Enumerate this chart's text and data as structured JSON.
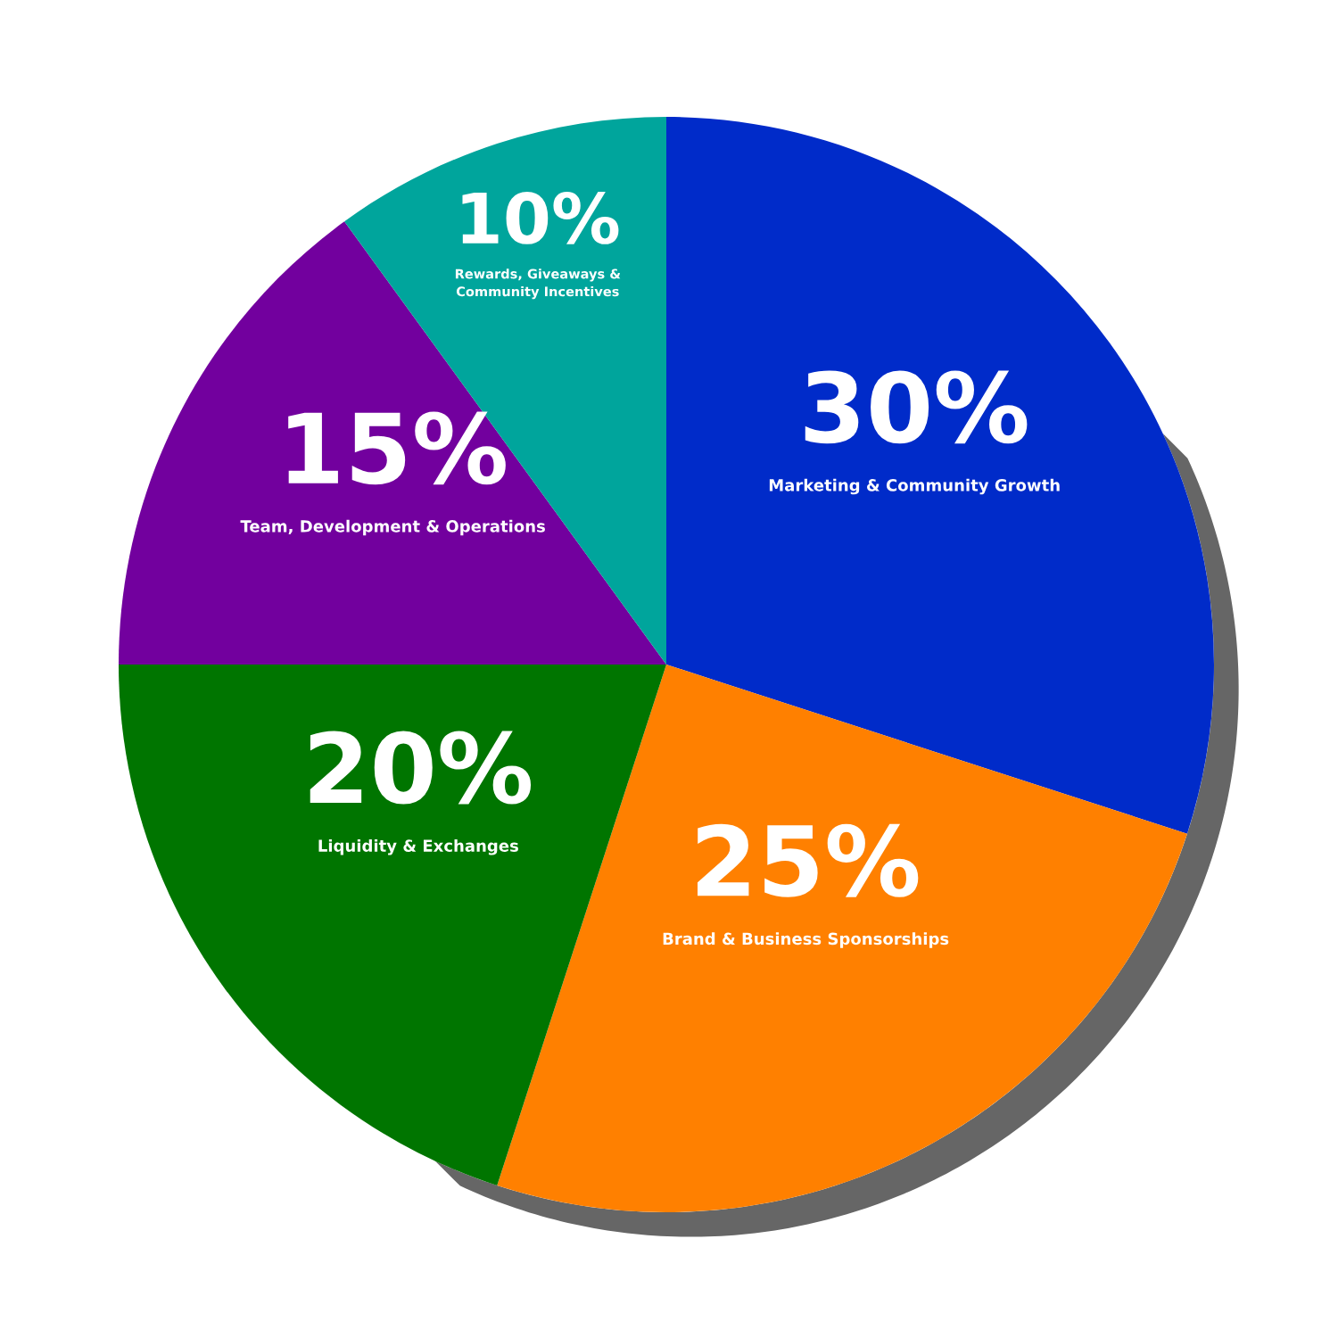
{
  "chart_data": {
    "type": "pie",
    "categories": [
      "Marketing & Community Growth",
      "Brand & Business Sponsorships",
      "Liquidity & Exchanges",
      "Team, Development & Operations",
      "Rewards, Giveaways & Community Incentives"
    ],
    "values": [
      30,
      25,
      20,
      15,
      10
    ],
    "value_labels": [
      "30%",
      "25%",
      "20%",
      "15%",
      "10%"
    ],
    "colors": [
      "#002bc9",
      "#ff8000",
      "#007500",
      "#72009e",
      "#00a59c"
    ],
    "legend": false
  }
}
